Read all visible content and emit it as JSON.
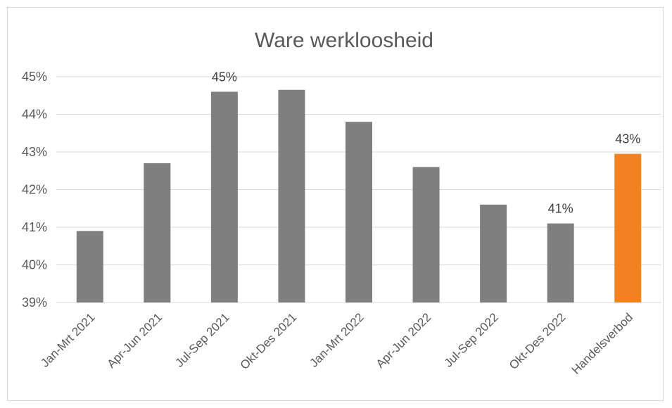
{
  "chart_data": {
    "type": "bar",
    "title": "Ware werkloosheid",
    "xlabel": "",
    "ylabel": "",
    "categories": [
      "Jan-Mrt 2021",
      "Apr-Jun 2021",
      "Jul-Sep 2021",
      "Okt-Des 2021",
      "Jan-Mrt 2022",
      "Apr-Jun 2022",
      "Jul-Sep 2022",
      "Okt-Des 2022",
      "Handelsverbod"
    ],
    "values": [
      40.9,
      42.7,
      44.6,
      44.65,
      43.8,
      42.6,
      41.6,
      41.1,
      42.95
    ],
    "data_labels": [
      "",
      "",
      "45%",
      "",
      "",
      "",
      "",
      "41%",
      "43%"
    ],
    "ylim": [
      39,
      45
    ],
    "yticks": [
      39,
      40,
      41,
      42,
      43,
      44,
      45
    ],
    "ytick_labels": [
      "39%",
      "40%",
      "41%",
      "42%",
      "43%",
      "44%",
      "45%"
    ],
    "grid": true,
    "legend": "none",
    "colors": [
      "#7f7f7f",
      "#7f7f7f",
      "#7f7f7f",
      "#7f7f7f",
      "#7f7f7f",
      "#7f7f7f",
      "#7f7f7f",
      "#7f7f7f",
      "#f28222"
    ],
    "gridline_color": "#d9d9d9"
  }
}
